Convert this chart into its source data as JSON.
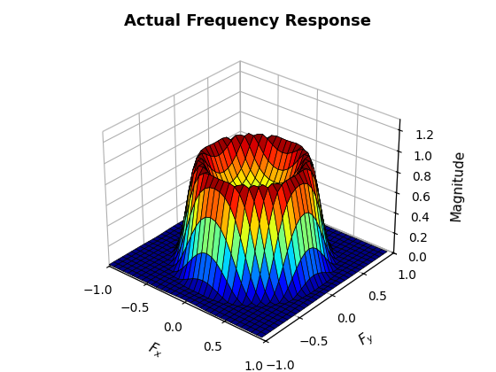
{
  "title": "Actual Frequency Response",
  "xlabel": "$F_x$",
  "ylabel": "$F_y$",
  "zlabel": "Magnitude",
  "xlim": [
    -1,
    1
  ],
  "ylim": [
    -1,
    1
  ],
  "zlim": [
    0,
    1.2
  ],
  "zticks": [
    0,
    0.2,
    0.4,
    0.6,
    0.8,
    1.0,
    1.2
  ],
  "xticks": [
    -1,
    -0.5,
    0,
    0.5,
    1
  ],
  "yticks": [
    -1,
    -0.5,
    0,
    0.5,
    1
  ],
  "n_points": 64,
  "cutoff": 0.4,
  "N": 15,
  "colormap": "jet",
  "elev": 30,
  "azim": -50
}
